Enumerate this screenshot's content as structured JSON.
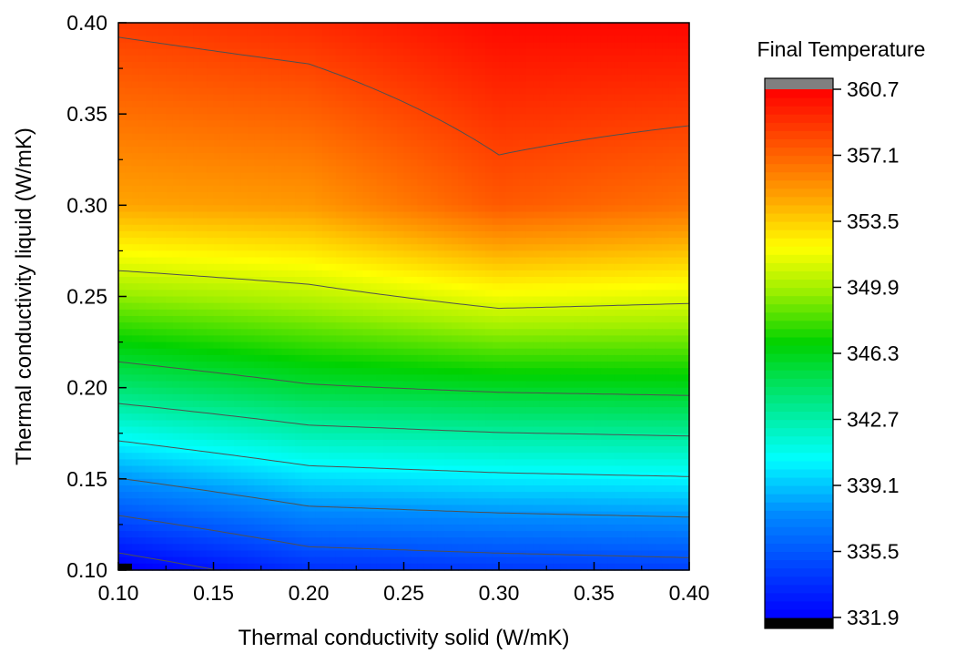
{
  "chart_data": {
    "type": "heatmap",
    "subtype": "filled-contour",
    "title": "",
    "xlabel": "Thermal conductivity solid (W/mK)",
    "ylabel": "Thermal conductivity liquid (W/mK)",
    "xlim": [
      0.1,
      0.4
    ],
    "ylim": [
      0.1,
      0.4
    ],
    "x_ticks": [
      "0.10",
      "0.15",
      "0.20",
      "0.25",
      "0.30",
      "0.35",
      "0.40"
    ],
    "y_ticks": [
      "0.10",
      "0.15",
      "0.20",
      "0.25",
      "0.30",
      "0.35",
      "0.40"
    ],
    "x": [
      0.1,
      0.2,
      0.3,
      0.4
    ],
    "y": [
      0.1,
      0.2,
      0.3,
      0.4
    ],
    "z": [
      [
        331.5,
        333.8,
        334.2,
        334.5
      ],
      [
        344.2,
        345.5,
        346.0,
        346.2
      ],
      [
        354.8,
        355.2,
        357.5,
        356.6
      ],
      [
        358.6,
        359.2,
        360.4,
        360.5
      ]
    ],
    "grid": false,
    "colorbar": {
      "title": "Final Temperature",
      "placement": "right",
      "min": 331.9,
      "max": 360.7,
      "tick_values": [
        331.9,
        335.5,
        339.1,
        342.7,
        346.3,
        349.9,
        353.5,
        357.1,
        360.7
      ],
      "tick_labels": [
        "331.9",
        "335.5",
        "339.1",
        "342.7",
        "346.3",
        "349.9",
        "353.5",
        "357.1",
        "360.7"
      ],
      "under_color": "#000000",
      "over_color": "#808080",
      "colormap": "rainbow (blue-cyan-green-yellow-orange-red)"
    },
    "contour_line_levels": [
      332.7,
      335.3,
      337.9,
      340.5,
      343.1,
      345.7,
      351.0,
      358.3
    ],
    "contour_line_color": "#505050"
  }
}
